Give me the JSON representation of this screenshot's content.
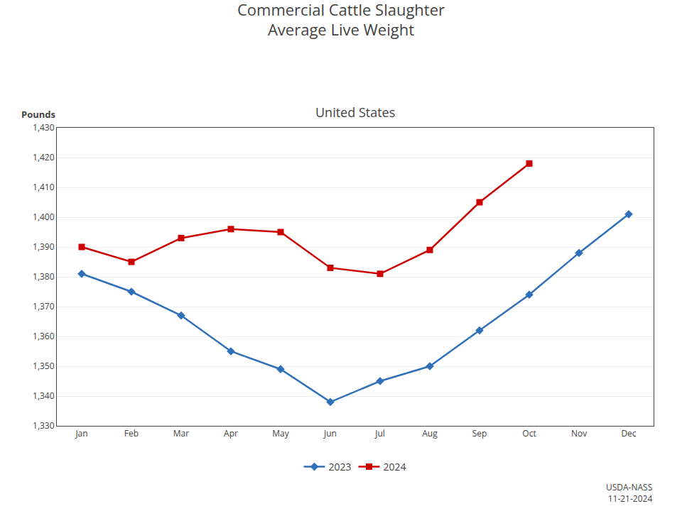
{
  "chart_data": {
    "type": "line",
    "title": "Commercial Cattle Slaughter\nAverage Live Weight",
    "subtitle": "United States",
    "ylabel": "Pounds",
    "categories": [
      "Jan",
      "Feb",
      "Mar",
      "Apr",
      "May",
      "Jun",
      "Jul",
      "Aug",
      "Sep",
      "Oct",
      "Nov",
      "Dec"
    ],
    "series": [
      {
        "name": "2023",
        "color": "#3070b8",
        "marker": "diamond",
        "values": [
          1381,
          1375,
          1367,
          1355,
          1349,
          1338,
          1345,
          1350,
          1362,
          1374,
          1388,
          1401
        ]
      },
      {
        "name": "2024",
        "color": "#cc0000",
        "marker": "square",
        "values": [
          1390,
          1385,
          1393,
          1396,
          1395,
          1383,
          1381,
          1389,
          1405,
          1418,
          null,
          null
        ]
      }
    ],
    "ylim": [
      1330,
      1430
    ],
    "yticks": [
      {
        "value": 1330,
        "label": "1,330"
      },
      {
        "value": 1340,
        "label": "1,340"
      },
      {
        "value": 1350,
        "label": "1,350"
      },
      {
        "value": 1360,
        "label": "1,360"
      },
      {
        "value": 1370,
        "label": "1,370"
      },
      {
        "value": 1380,
        "label": "1,380"
      },
      {
        "value": 1390,
        "label": "1,390"
      },
      {
        "value": 1400,
        "label": "1,400"
      },
      {
        "value": 1410,
        "label": "1,410"
      },
      {
        "value": 1420,
        "label": "1,420"
      },
      {
        "value": 1430,
        "label": "1,430"
      }
    ],
    "grid": true,
    "legend": "bottom",
    "annotation": "USDA-NASS\n11-21-2024"
  }
}
